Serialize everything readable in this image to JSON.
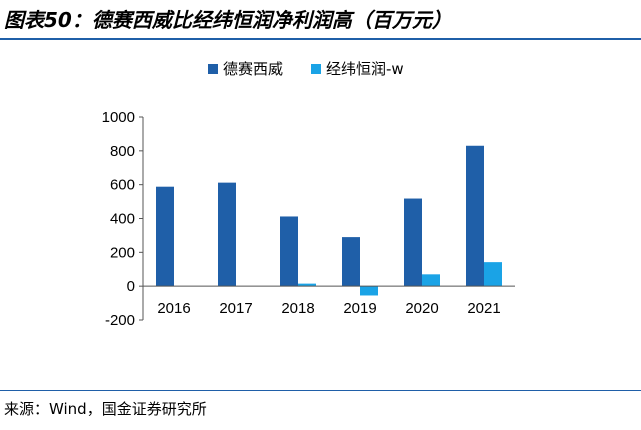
{
  "title": "图表50：德赛西威比经纬恒润净利润高（百万元）",
  "source": "来源：Wind，国金证券研究所",
  "colors": {
    "series1": "#1f5fa8",
    "series2": "#1aa3e6",
    "rule": "#1f5fa8"
  },
  "chart_data": {
    "type": "bar",
    "categories": [
      "2016",
      "2017",
      "2018",
      "2019",
      "2020",
      "2021"
    ],
    "series": [
      {
        "name": "德赛西威",
        "values": [
          588,
          612,
          412,
          290,
          518,
          830
        ]
      },
      {
        "name": "经纬恒润-w",
        "values": [
          0,
          0,
          15,
          -55,
          70,
          142
        ]
      }
    ],
    "yticks": [
      "1000",
      "800",
      "600",
      "400",
      "200",
      "0",
      "-200"
    ],
    "ylim": [
      -200,
      1000
    ],
    "legend_position": "top",
    "grid": false
  }
}
